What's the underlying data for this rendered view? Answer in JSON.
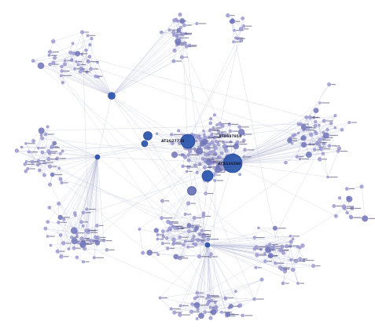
{
  "network": {
    "colors": {
      "background": "#ffffff",
      "edge": "#b9bcd6",
      "hub": "#2e58ae",
      "mid": "#6f74b8",
      "leaf": "#9d9bd3",
      "leaf_stroke": "#6d6aae",
      "label_dark": "#1a1a2e",
      "label_light": "#3a3a66"
    },
    "hub_labels": {
      "primary": "AT4G38580",
      "secondary": "AT4G37810",
      "tertiary": "AT1G27730"
    },
    "clusters": [
      "top-cluster",
      "upper-left-cluster",
      "left-cluster",
      "center-core",
      "right-cluster",
      "lower-left-cluster",
      "bottom-cluster"
    ]
  }
}
